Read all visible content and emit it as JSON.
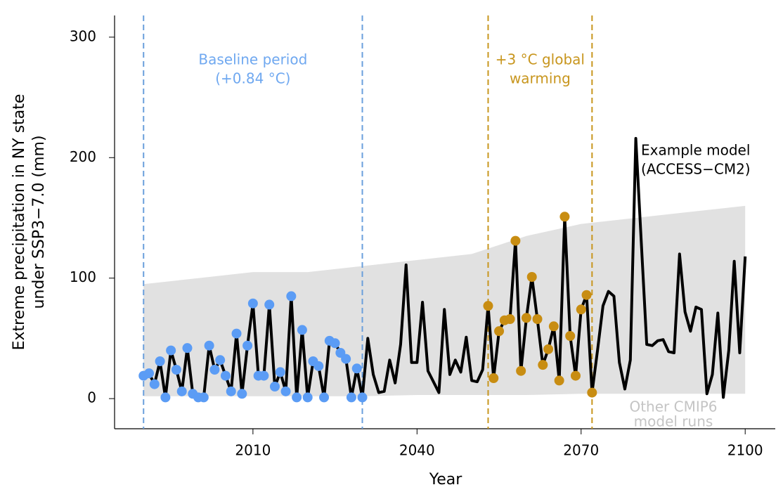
{
  "chart_data": {
    "type": "line",
    "xlabel": "Year",
    "ylabel_lines": [
      "Extreme precipitation in NY state",
      "under SSP3−7.0 (mm)"
    ],
    "xlim": [
      1984.7,
      2105.5
    ],
    "ylim": [
      -25,
      318
    ],
    "xticks": [
      2010,
      2040,
      2070,
      2100
    ],
    "yticks": [
      0,
      100,
      200,
      300
    ],
    "x": [
      1990,
      1991,
      1992,
      1993,
      1994,
      1995,
      1996,
      1997,
      1998,
      1999,
      2000,
      2001,
      2002,
      2003,
      2004,
      2005,
      2006,
      2007,
      2008,
      2009,
      2010,
      2011,
      2012,
      2013,
      2014,
      2015,
      2016,
      2017,
      2018,
      2019,
      2020,
      2021,
      2022,
      2023,
      2024,
      2025,
      2026,
      2027,
      2028,
      2029,
      2030,
      2031,
      2032,
      2033,
      2034,
      2035,
      2036,
      2037,
      2038,
      2039,
      2040,
      2041,
      2042,
      2043,
      2044,
      2045,
      2046,
      2047,
      2048,
      2049,
      2050,
      2051,
      2052,
      2053,
      2054,
      2055,
      2056,
      2057,
      2058,
      2059,
      2060,
      2061,
      2062,
      2063,
      2064,
      2065,
      2066,
      2067,
      2068,
      2069,
      2070,
      2071,
      2072,
      2073,
      2074,
      2075,
      2076,
      2077,
      2078,
      2079,
      2080,
      2081,
      2082,
      2083,
      2084,
      2085,
      2086,
      2087,
      2088,
      2089,
      2090,
      2091,
      2092,
      2093,
      2094,
      2095,
      2096,
      2097,
      2098,
      2099,
      2100
    ],
    "series": [
      {
        "name_lines": [
          "Example model",
          "(ACCESS−CM2)"
        ],
        "color": "#000000",
        "values": [
          19,
          21,
          12,
          31,
          1,
          40,
          24,
          6,
          42,
          4,
          1,
          1,
          44,
          24,
          32,
          19,
          6,
          54,
          4,
          44,
          79,
          19,
          19,
          78,
          10,
          22,
          6,
          85,
          1,
          57,
          1,
          31,
          27,
          1,
          48,
          46,
          38,
          33,
          1,
          25,
          1,
          50,
          20,
          5,
          6,
          32,
          13,
          45,
          111,
          30,
          30,
          80,
          23,
          14,
          5,
          74,
          20,
          32,
          22,
          51,
          15,
          14,
          24,
          77,
          17,
          56,
          65,
          66,
          131,
          23,
          67,
          101,
          66,
          28,
          41,
          60,
          15,
          151,
          52,
          19,
          74,
          86,
          5,
          40,
          77,
          89,
          85,
          30,
          8,
          32,
          216,
          130,
          45,
          44,
          48,
          49,
          39,
          38,
          120,
          72,
          56,
          76,
          74,
          4,
          20,
          71,
          1,
          40,
          114,
          38,
          118
        ]
      }
    ],
    "periods": [
      {
        "label_lines": [
          "Baseline period",
          "(+0.84 °C)"
        ],
        "start": 1990,
        "end": 2030,
        "color": "#5b9cf5",
        "line_color": "#6a9fdc",
        "text_color": "#6fa8f0"
      },
      {
        "label_lines": [
          "+3 °C global",
          "warming"
        ],
        "start": 2053,
        "end": 2072,
        "color": "#c88d12",
        "line_color": "#c8961e",
        "text_color": "#c8961e"
      }
    ],
    "other_runs": {
      "label_lines": [
        "Other CMIP6",
        "model runs"
      ],
      "color": "#d9d9d9",
      "x": [
        1990,
        2000,
        2010,
        2020,
        2030,
        2040,
        2050,
        2060,
        2070,
        2080,
        2090,
        2100
      ],
      "lower": [
        2,
        2,
        2,
        2,
        2,
        3,
        3,
        3,
        4,
        4,
        4,
        4
      ],
      "upper": [
        95,
        100,
        105,
        105,
        110,
        115,
        120,
        135,
        145,
        150,
        155,
        160
      ]
    }
  }
}
